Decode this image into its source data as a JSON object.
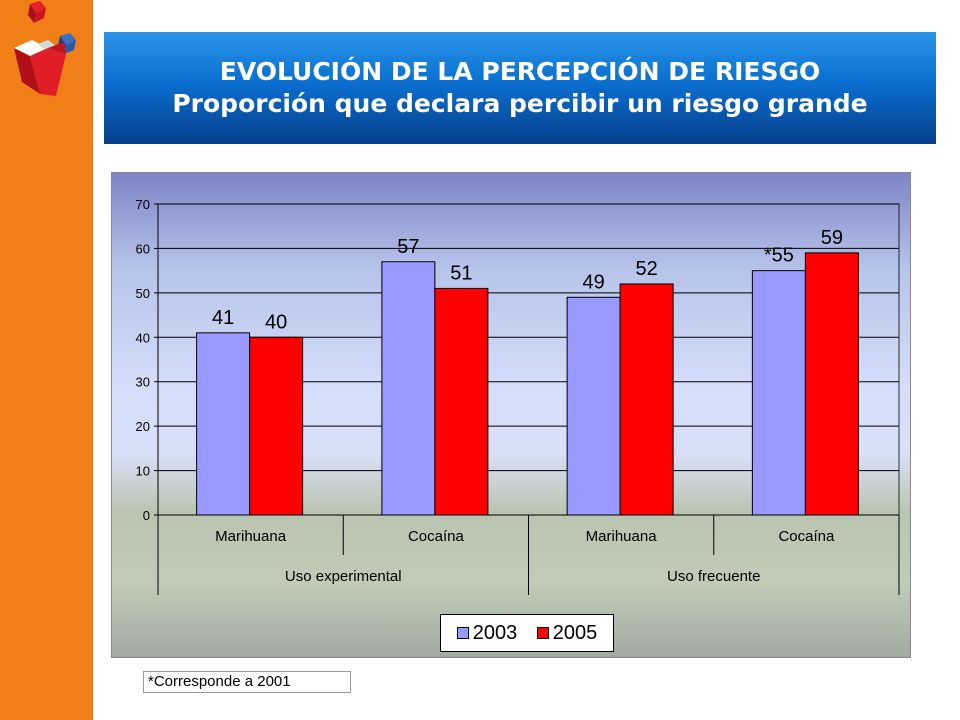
{
  "title": {
    "line1": "EVOLUCIÓN DE LA PERCEPCIÓN DE RIESGO",
    "line2": "Proporción que declara percibir un riesgo grande"
  },
  "colors": {
    "sidebar": "#f07f17",
    "series_2003": "#9999ff",
    "series_2005": "#ff0000"
  },
  "chart_data": {
    "type": "bar",
    "categories": [
      "Marihuana",
      "Cocaína",
      "Marihuana",
      "Cocaína"
    ],
    "groups": [
      {
        "label": "Uso experimental",
        "span": 2
      },
      {
        "label": "Uso frecuente",
        "span": 2
      }
    ],
    "series": [
      {
        "name": "2003",
        "values": [
          41,
          57,
          49,
          55
        ],
        "labels": [
          "41",
          "57",
          "49",
          "*55"
        ],
        "color": "#9999ff"
      },
      {
        "name": "2005",
        "values": [
          40,
          51,
          52,
          59
        ],
        "labels": [
          "40",
          "51",
          "52",
          "59"
        ],
        "color": "#ff0000"
      }
    ],
    "ylim": [
      0,
      70
    ],
    "yticks": [
      0,
      10,
      20,
      30,
      40,
      50,
      60,
      70
    ],
    "grid": true,
    "legend_position": "bottom"
  },
  "footnote": "*Corresponde a 2001"
}
